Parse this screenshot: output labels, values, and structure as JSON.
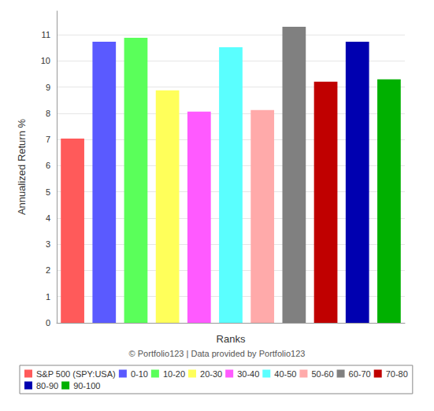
{
  "chart_data": {
    "type": "bar",
    "x_label": "Ranks",
    "y_label": "Annualized Return %",
    "annotations": [
      "© Portfolio123 | Data provided by Portfolio123"
    ],
    "categories": [
      "S&P 500 (SPY:USA)",
      "0-10",
      "10-20",
      "20-30",
      "30-40",
      "40-50",
      "50-60",
      "60-70",
      "70-80",
      "80-90",
      "90-100"
    ],
    "values": [
      7.03,
      10.73,
      10.88,
      8.87,
      8.06,
      10.52,
      8.12,
      11.3,
      9.2,
      10.73,
      9.29
    ],
    "colors": [
      "#ff5a5a",
      "#5a5aff",
      "#5aff5a",
      "#ffff5a",
      "#ff5aff",
      "#5affff",
      "#ffaaaa",
      "#808080",
      "#c00000",
      "#0000b0",
      "#00b000"
    ],
    "ylim": [
      0,
      11.9
    ],
    "yticks": [
      0,
      1,
      2,
      3,
      4,
      5,
      6,
      7,
      8,
      9,
      10,
      11
    ],
    "grid": true,
    "legend": "bottom",
    "tick_labels": "y"
  }
}
